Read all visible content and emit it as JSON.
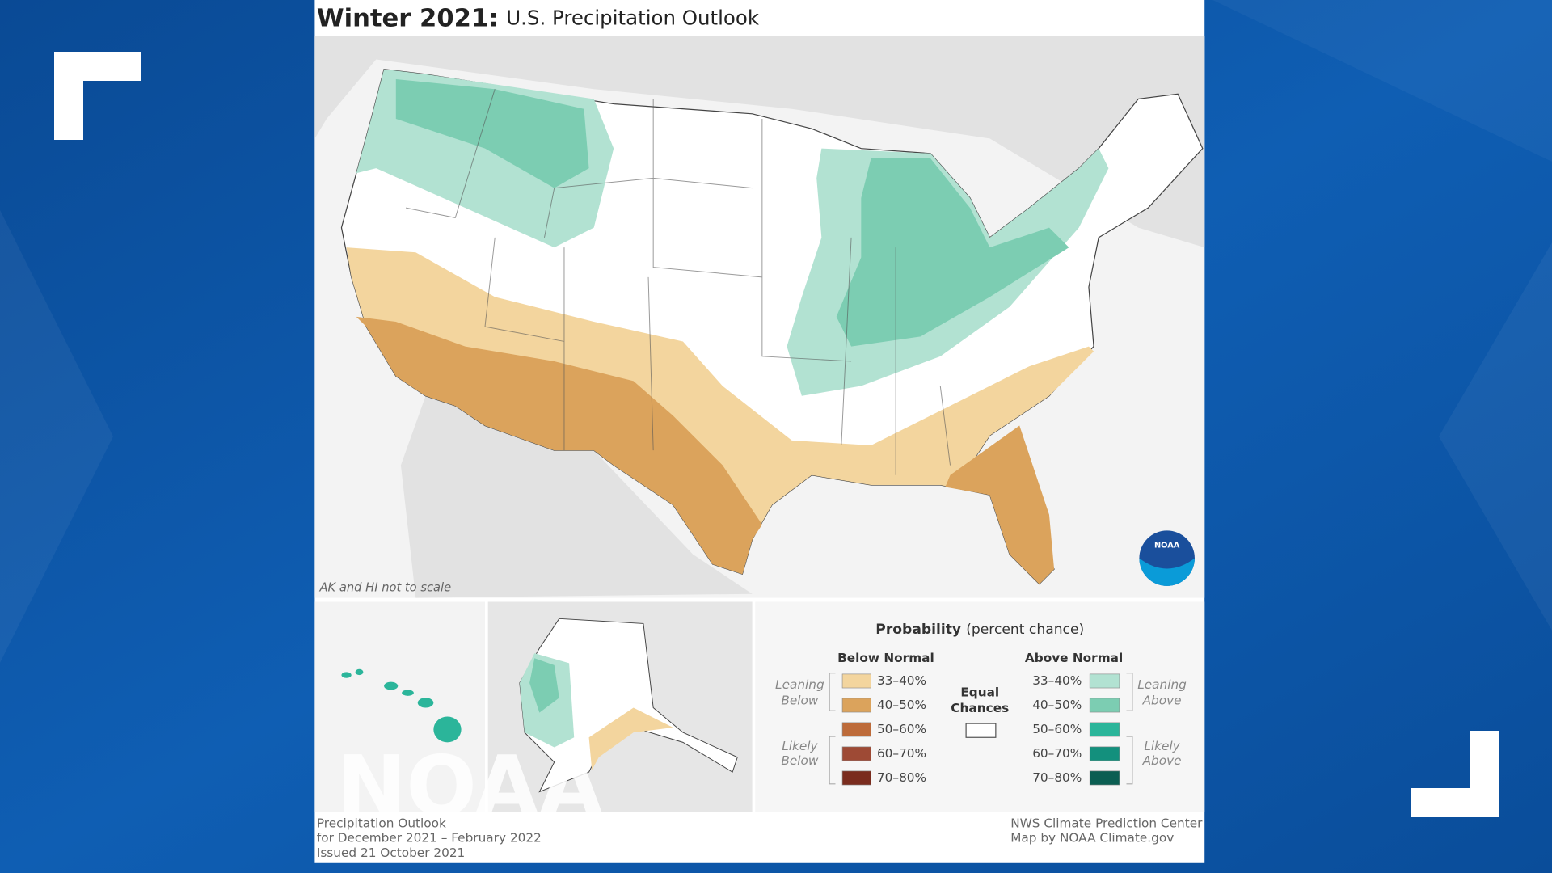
{
  "header": {
    "title_bold": "Winter 2021:",
    "title": "U.S. Precipitation Outlook"
  },
  "map": {
    "note": "AK and HI not to scale",
    "watermark": "NOAA",
    "logo": "NOAA"
  },
  "legend": {
    "title": "Probability",
    "subtitle": "(percent chance)",
    "below": {
      "heading": "Below Normal",
      "items": [
        {
          "label": "33–40%",
          "color": "#f3d59e"
        },
        {
          "label": "40–50%",
          "color": "#dba35c"
        },
        {
          "label": "50–60%",
          "color": "#bd6b3a"
        },
        {
          "label": "60–70%",
          "color": "#9e4a35"
        },
        {
          "label": "70–80%",
          "color": "#7a2c1e"
        }
      ],
      "leaning": [
        "Leaning",
        "Below"
      ],
      "likely": [
        "Likely",
        "Below"
      ]
    },
    "equal": {
      "label": [
        "Equal",
        "Chances"
      ],
      "color": "#ffffff"
    },
    "above": {
      "heading": "Above Normal",
      "items": [
        {
          "label": "33–40%",
          "color": "#b2e2d2"
        },
        {
          "label": "40–50%",
          "color": "#7ccdb2"
        },
        {
          "label": "50–60%",
          "color": "#2bb59a"
        },
        {
          "label": "60–70%",
          "color": "#13907d"
        },
        {
          "label": "70–80%",
          "color": "#0b5e52"
        }
      ],
      "leaning": [
        "Leaning",
        "Above"
      ],
      "likely": [
        "Likely",
        "Above"
      ]
    }
  },
  "footer": {
    "left": [
      "Precipitation Outlook",
      "for December 2021 – February 2022",
      "Issued 21 October 2021"
    ],
    "right": [
      "NWS Climate Prediction Center",
      "Map by NOAA Climate.gov"
    ]
  }
}
